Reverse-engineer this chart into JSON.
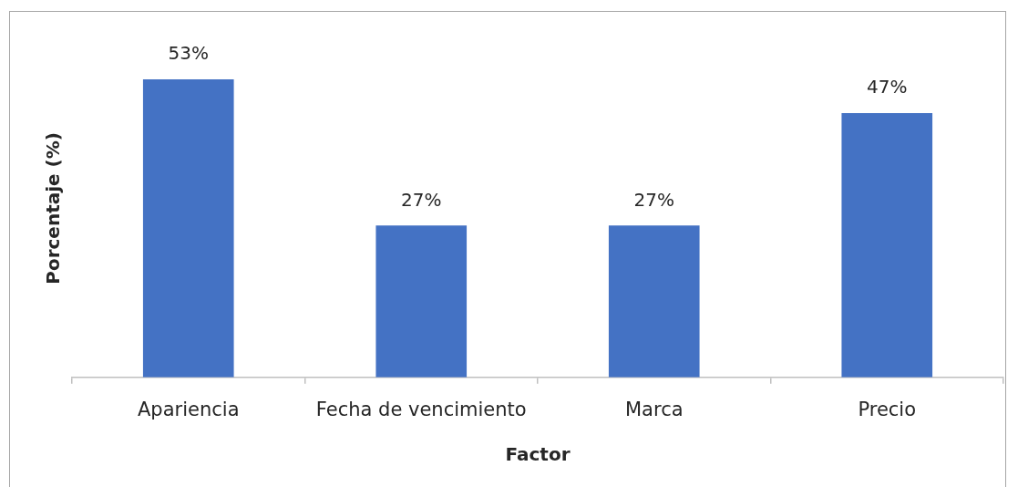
{
  "chart_data": {
    "type": "bar",
    "categories": [
      "Apariencia",
      "Fecha de vencimiento",
      "Marca",
      "Precio"
    ],
    "values": [
      53,
      27,
      27,
      47
    ],
    "color": "#4472c4",
    "value_labels": [
      "53%",
      "27%",
      "27%",
      "47%"
    ],
    "xlabel": "Factor",
    "ylabel": "Porcentaje (%)",
    "tick_labels": "x"
  }
}
